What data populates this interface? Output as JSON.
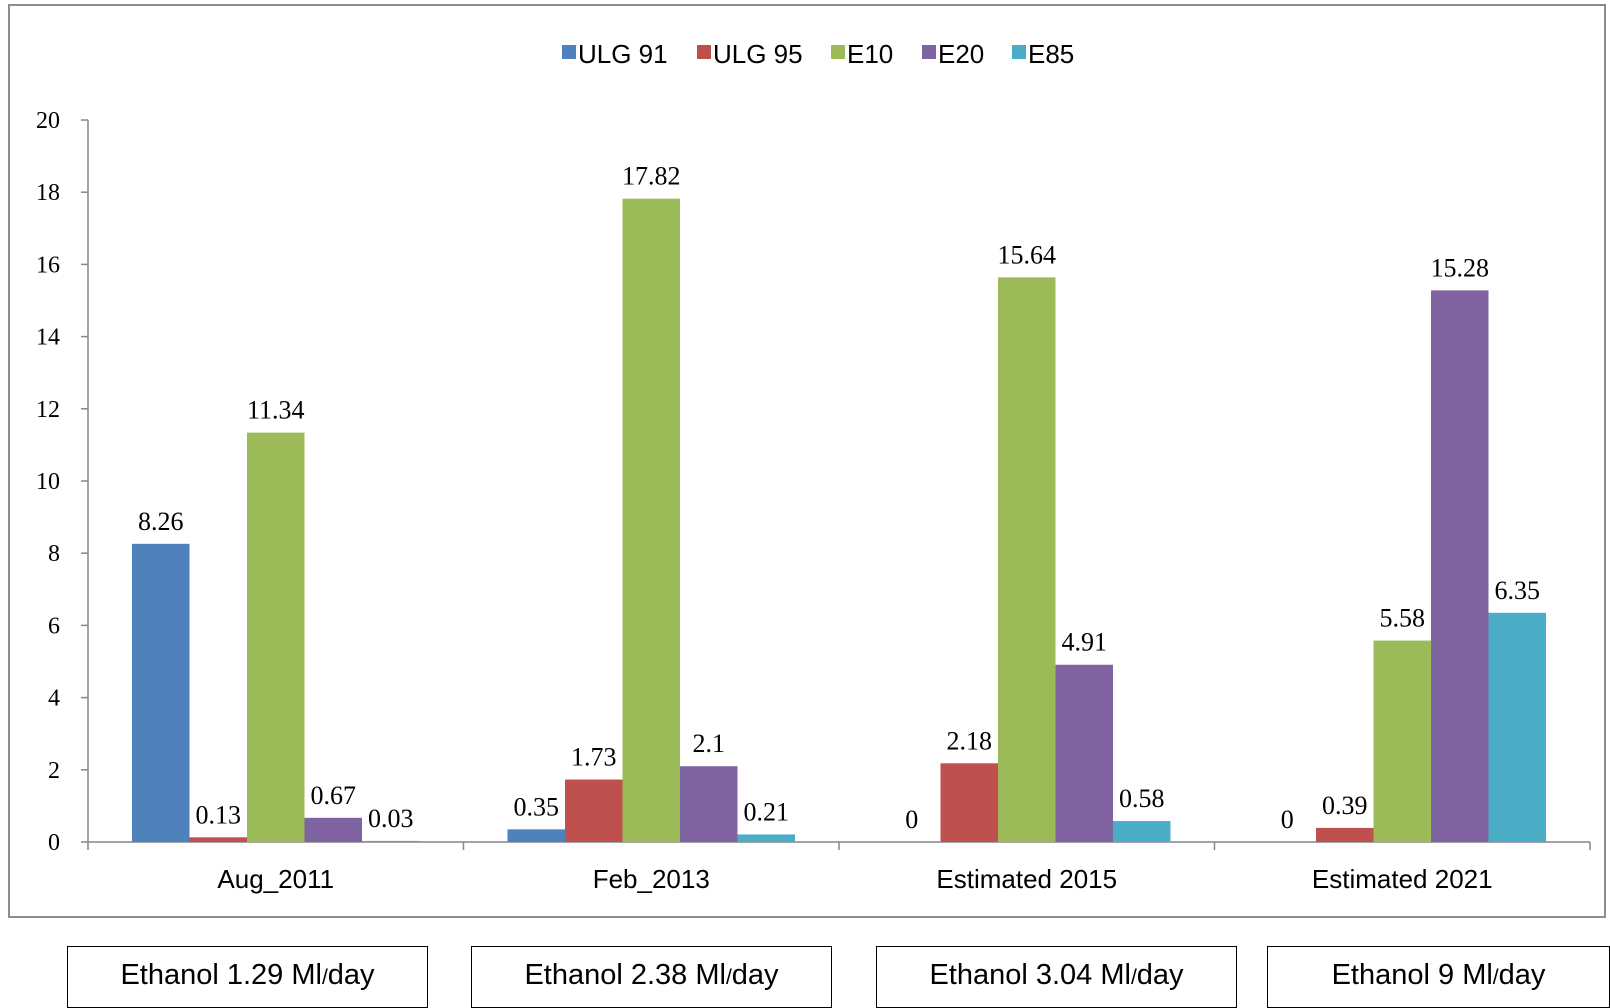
{
  "chart_data": {
    "type": "bar",
    "categories": [
      "Aug_2011",
      "Feb_2013",
      "Estimated 2015",
      "Estimated 2021"
    ],
    "series": [
      {
        "name": "ULG 91",
        "color": "#4f81bd",
        "values": [
          8.26,
          0.35,
          0,
          0
        ]
      },
      {
        "name": "ULG 95",
        "color": "#c0504d",
        "values": [
          0.13,
          1.73,
          2.18,
          0.39
        ]
      },
      {
        "name": "E10",
        "color": "#9bbb59",
        "values": [
          11.34,
          17.82,
          15.64,
          5.58
        ]
      },
      {
        "name": "E20",
        "color": "#8064a2",
        "values": [
          0.67,
          2.1,
          4.91,
          15.28
        ]
      },
      {
        "name": "E85",
        "color": "#4bacc6",
        "values": [
          0.03,
          0.21,
          0.58,
          6.35
        ]
      }
    ],
    "data_labels": [
      [
        "8.26",
        "0.13",
        "11.34",
        "0.67",
        "0.03"
      ],
      [
        "0.35",
        "1.73",
        "17.82",
        "2.1",
        "0.21"
      ],
      [
        "0",
        "2.18",
        "15.64",
        "4.91",
        "0.58"
      ],
      [
        "0",
        "0.39",
        "5.58",
        "15.28",
        "6.35"
      ]
    ],
    "yticks": [
      "0",
      "2",
      "4",
      "6",
      "8",
      "10",
      "12",
      "14",
      "16",
      "18",
      "20"
    ],
    "ylim": [
      0,
      20
    ],
    "legend_position": "top",
    "grid": false
  },
  "ethanol_boxes": [
    {
      "prefix": "Ethanol 1.29 Ml",
      "unit_sub": "/",
      "suffix": "day"
    },
    {
      "prefix": "Ethanol 2.38 Ml",
      "unit_sub": "/",
      "suffix": "day"
    },
    {
      "prefix": "Ethanol 3.04  Ml",
      "unit_sub": "/",
      "suffix": "day"
    },
    {
      "prefix": "Ethanol 9  Ml",
      "unit_sub": "/",
      "suffix": "day"
    }
  ]
}
